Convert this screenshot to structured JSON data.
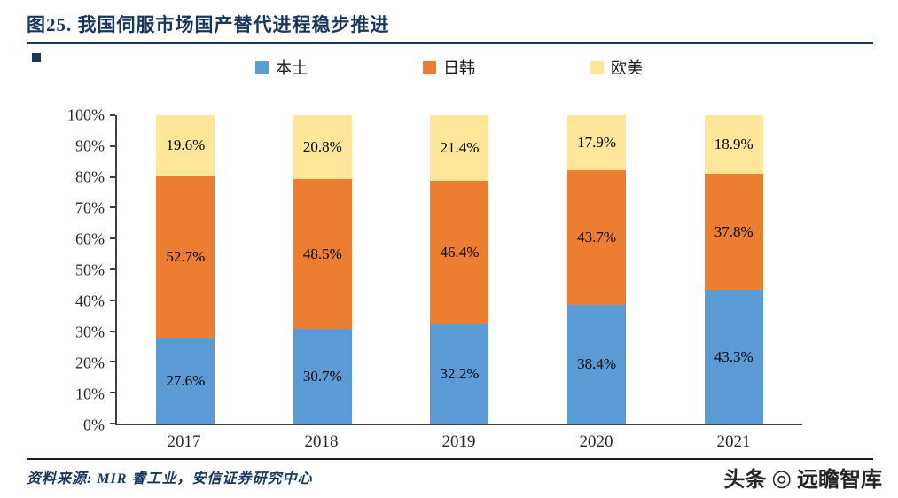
{
  "title": "图25. 我国伺服市场国产替代进程稳步推进",
  "source": "资料来源: MIR 睿工业，安信证券研究中心",
  "watermark": {
    "prefix": "头条",
    "logo_glyph": "◎",
    "name": "远瞻智库"
  },
  "chart_data": {
    "type": "bar",
    "stacked": true,
    "title": "我国伺服市场国产替代进程稳步推进",
    "categories": [
      "2017",
      "2018",
      "2019",
      "2020",
      "2021"
    ],
    "series": [
      {
        "name": "本土",
        "color": "#5B9BD5",
        "values": [
          27.6,
          30.7,
          32.2,
          38.4,
          43.3
        ]
      },
      {
        "name": "日韩",
        "color": "#ED7D31",
        "values": [
          52.7,
          48.5,
          46.4,
          43.7,
          37.8
        ]
      },
      {
        "name": "欧美",
        "color": "#FFE699",
        "values": [
          19.6,
          20.8,
          21.4,
          17.9,
          18.9
        ]
      }
    ],
    "ylim": [
      0,
      100
    ],
    "yticks": [
      "0%",
      "10%",
      "20%",
      "30%",
      "40%",
      "50%",
      "60%",
      "70%",
      "80%",
      "90%",
      "100%"
    ],
    "ylabel": "",
    "xlabel": "",
    "legend_position": "top",
    "grid": false,
    "value_label_format": "{value}%"
  },
  "colors": {
    "accent_navy": "#17365D",
    "series_local": "#5B9BD5",
    "series_japan_korea": "#ED7D31",
    "series_europe_us": "#FFE699"
  }
}
